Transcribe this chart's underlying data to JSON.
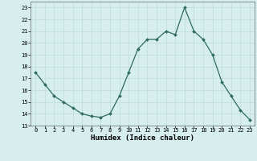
{
  "x": [
    0,
    1,
    2,
    3,
    4,
    5,
    6,
    7,
    8,
    9,
    10,
    11,
    12,
    13,
    14,
    15,
    16,
    17,
    18,
    19,
    20,
    21,
    22,
    23
  ],
  "y": [
    17.5,
    16.5,
    15.5,
    15.0,
    14.5,
    14.0,
    13.8,
    13.7,
    14.0,
    15.5,
    17.5,
    19.5,
    20.3,
    20.3,
    21.0,
    20.7,
    23.0,
    21.0,
    20.3,
    19.0,
    16.7,
    15.5,
    14.3,
    13.5
  ],
  "xlabel": "Humidex (Indice chaleur)",
  "line_color": "#2e6b5e",
  "bg_color": "#d6eeee",
  "grid_color": "#c0dada",
  "ylim": [
    13,
    23.5
  ],
  "xlim": [
    -0.5,
    23.5
  ],
  "yticks": [
    13,
    14,
    15,
    16,
    17,
    18,
    19,
    20,
    21,
    22,
    23
  ],
  "xticks": [
    0,
    1,
    2,
    3,
    4,
    5,
    6,
    7,
    8,
    9,
    10,
    11,
    12,
    13,
    14,
    15,
    16,
    17,
    18,
    19,
    20,
    21,
    22,
    23
  ],
  "tick_fontsize": 5.0,
  "xlabel_fontsize": 6.5
}
